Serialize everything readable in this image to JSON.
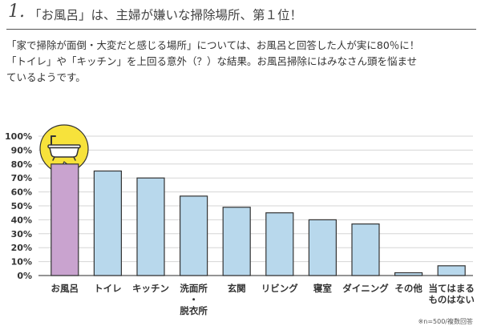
{
  "heading": {
    "number": "1.",
    "text": "「お風呂」は、主婦が嫌いな掃除場所、第１位！"
  },
  "intro": {
    "line1": "「家で掃除が面倒・大変だと感じる場所」については、お風呂と回答した人が実に80％に！",
    "line2": "「トイレ」や「キッチン」を上回る意外（？）な結果。お風呂掃除にはみなさん頭を悩ませ",
    "line3": "ているようです。"
  },
  "icon": "bathtub-icon",
  "colors": {
    "highlight_bar": "#c9a3cf",
    "bar": "#b8d8ec",
    "bar_stroke": "#333333",
    "callout": "#f7e23b"
  },
  "chart_data": {
    "type": "bar",
    "categories": [
      [
        "お風呂"
      ],
      [
        "トイレ"
      ],
      [
        "キッチン"
      ],
      [
        "洗面所",
        "・",
        "脱衣所"
      ],
      [
        "玄関"
      ],
      [
        "リビング"
      ],
      [
        "寝室"
      ],
      [
        "ダイニング"
      ],
      [
        "その他"
      ],
      [
        "当てはまる",
        "ものはない"
      ]
    ],
    "values": [
      80,
      75,
      70,
      57,
      49,
      45,
      40,
      37,
      2,
      7
    ],
    "highlight_index": 0,
    "ylim": [
      0,
      100
    ],
    "yticks": [
      "0%",
      "10%",
      "20%",
      "30%",
      "40%",
      "50%",
      "60%",
      "70%",
      "80%",
      "90%",
      "100%"
    ],
    "grid": true,
    "note": "※n=500/複数回答"
  }
}
